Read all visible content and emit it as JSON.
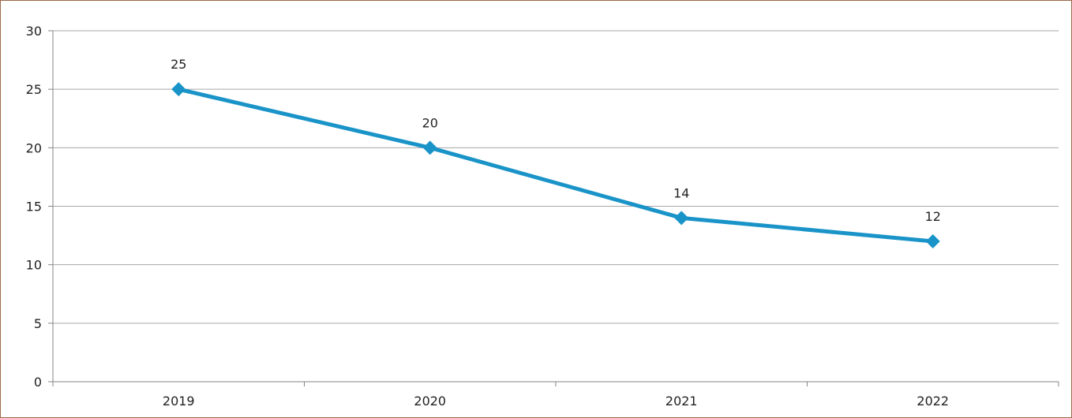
{
  "chart_data": {
    "type": "line",
    "categories": [
      "2019",
      "2020",
      "2021",
      "2022"
    ],
    "series": [
      {
        "values": [
          25,
          20,
          14,
          12
        ],
        "color": "#1a94c8"
      }
    ],
    "data_labels": [
      "25",
      "20",
      "14",
      "12"
    ],
    "ylim": [
      0,
      30
    ],
    "y_ticks": [
      "0",
      "5",
      "10",
      "15",
      "20",
      "25",
      "30"
    ],
    "grid": true,
    "marker": "diamond",
    "legend": "none",
    "colors": {
      "gridline": "#a6a6a6",
      "axis": "#868686",
      "border": "#9b6a4a"
    }
  }
}
